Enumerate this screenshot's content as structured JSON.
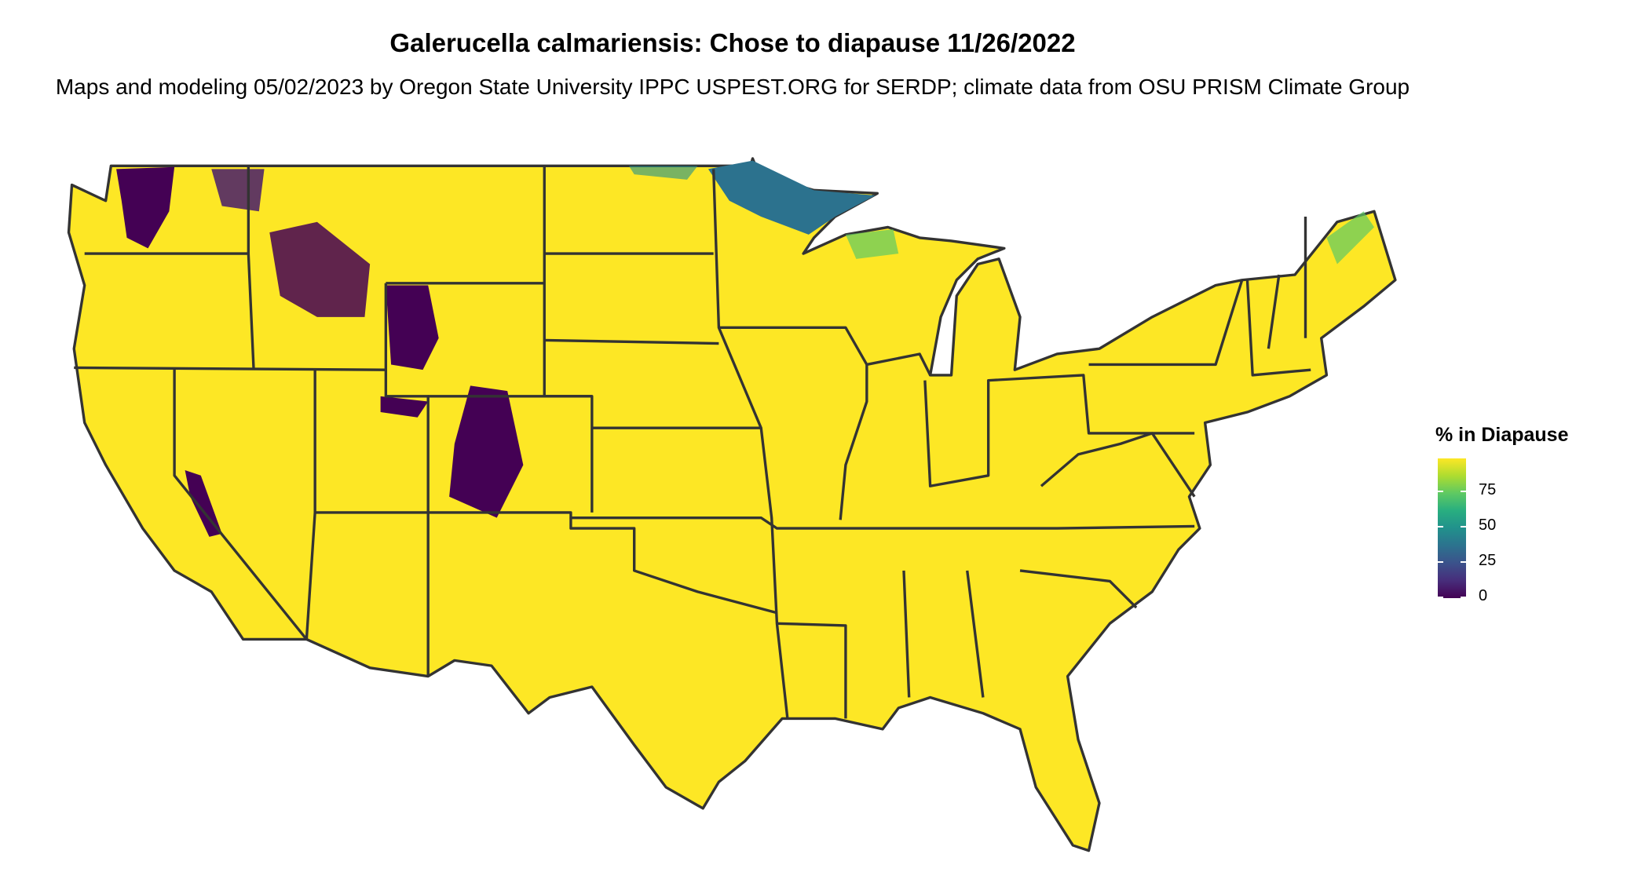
{
  "title": "Galerucella calmariensis: Chose to diapause 11/26/2022",
  "subtitle": "Maps and modeling 05/02/2023 by Oregon State University IPPC USPEST.ORG for SERDP; climate data from OSU PRISM Climate Group",
  "legend": {
    "title": "% in Diapause",
    "ticks": [
      "0",
      "25",
      "50",
      "75"
    ],
    "colormap": "viridis",
    "range": [
      0,
      100
    ],
    "colors": {
      "low": "#440154",
      "mid": "#21918c",
      "high": "#fde725"
    }
  },
  "map": {
    "region": "Contiguous United States with state borders",
    "dominant_value_percent": 100,
    "fill_color": "#fde725",
    "border_color": "#333333"
  }
}
